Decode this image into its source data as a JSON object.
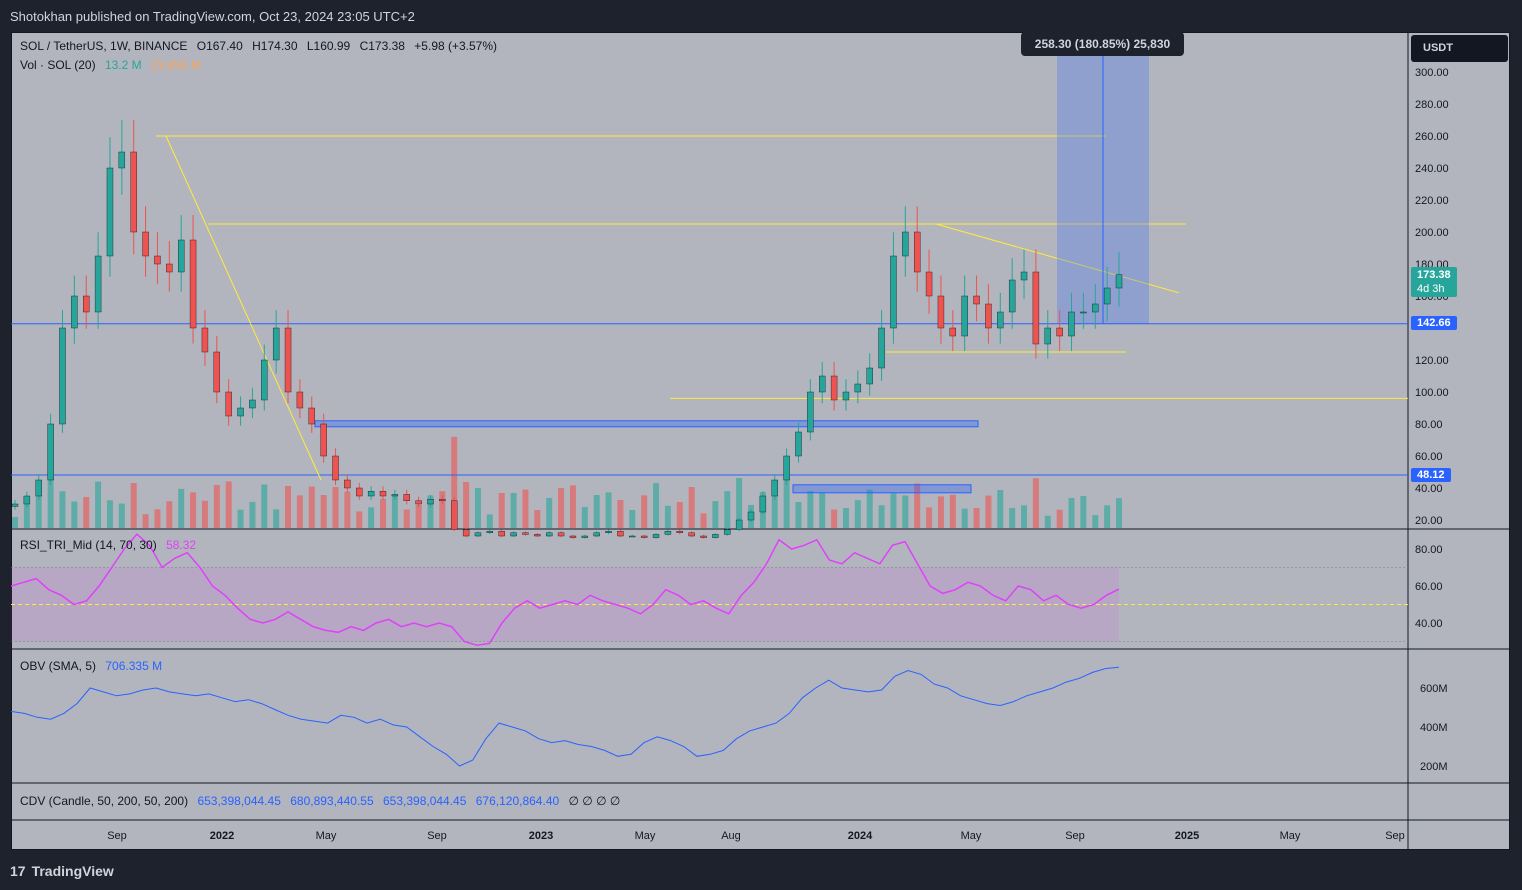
{
  "header": {
    "published": "Shotokhan published on TradingView.com, Oct 23, 2024 23:05 UTC+2"
  },
  "footer": {
    "brand": "TradingView",
    "logo": "17"
  },
  "main_legend": {
    "symbol": "SOL / TetherUS, 1W, BINANCE",
    "open": "O167.40",
    "high": "H174.30",
    "low": "L160.99",
    "close": "C173.38",
    "change": "+5.98 (+3.57%)"
  },
  "vol_legend": {
    "label": "Vol · SOL (20)",
    "vol": "13.2 M",
    "vol_ma": "23.856 M"
  },
  "rsi_legend": {
    "label": "RSI_TRI_Mid (14, 70, 30)",
    "value": "58.32"
  },
  "obv_legend": {
    "label": "OBV (SMA, 5)",
    "value": "706.335 M"
  },
  "cdv_legend": {
    "label": "CDV (Candle, 50, 200, 50, 200)",
    "v1": "653,398,044.45",
    "v2": "680,893,440.55",
    "v3": "653,398,044.45",
    "v4": "676,120,864.40",
    "rest": "∅ ∅ ∅ ∅"
  },
  "currency": "USDT",
  "measure_label": "258.30 (180.85%) 25,830",
  "price_tags": {
    "last": "173.38",
    "countdown": "4d 3h",
    "level1": "142.66",
    "level2": "48.12"
  },
  "colors": {
    "bg": "#b2b5be",
    "up": "#26a69a",
    "down": "#ef5350",
    "level": "#2962ff",
    "trend": "#ffeb3b",
    "rsi": "#e040fb",
    "obv": "#2962ff"
  },
  "chart_data": [
    {
      "type": "candlestick",
      "title": "SOL / TetherUS, 1W, BINANCE",
      "y_axis_ticks": [
        "300.00",
        "280.00",
        "260.00",
        "240.00",
        "220.00",
        "200.00",
        "180.00",
        "160.00",
        "142.66",
        "120.00",
        "100.00",
        "80.00",
        "60.00",
        "48.12",
        "40.00",
        "20.00"
      ],
      "x_axis_ticks": [
        "Sep",
        "2022",
        "May",
        "Sep",
        "2023",
        "May",
        "Aug",
        "2024",
        "May",
        "Sep",
        "2025",
        "May",
        "Sep"
      ],
      "approx_closes": [
        30,
        35,
        45,
        80,
        140,
        160,
        150,
        185,
        240,
        250,
        200,
        185,
        180,
        175,
        195,
        140,
        125,
        100,
        85,
        90,
        95,
        120,
        140,
        100,
        90,
        80,
        60,
        45,
        40,
        35,
        38,
        35,
        36,
        32,
        30,
        33,
        32,
        14,
        10,
        12,
        13,
        10,
        12,
        11,
        10,
        12,
        10,
        9,
        10,
        12,
        13,
        10,
        10,
        9,
        11,
        13,
        12,
        10,
        9,
        11,
        14,
        20,
        25,
        35,
        45,
        60,
        75,
        100,
        110,
        95,
        100,
        105,
        115,
        140,
        185,
        200,
        175,
        160,
        140,
        135,
        160,
        155,
        140,
        150,
        170,
        175,
        130,
        140,
        135,
        150,
        150,
        155,
        165,
        173.38
      ],
      "last_close": 173.38,
      "levels": [
        142.66,
        48.12
      ],
      "resistance_levels": [
        260,
        205,
        125,
        96
      ]
    },
    {
      "type": "bar",
      "title": "Vol · SOL (20)",
      "last_value": "13.2 M",
      "ma_value": "23.856 M"
    },
    {
      "type": "line",
      "title": "RSI_TRI_Mid (14, 70, 30)",
      "y_axis_ticks": [
        "80.00",
        "60.00",
        "40.00"
      ],
      "bands": [
        30,
        50,
        70
      ],
      "approx_values": [
        60,
        62,
        64,
        58,
        55,
        50,
        52,
        60,
        70,
        80,
        88,
        82,
        70,
        75,
        78,
        70,
        60,
        55,
        48,
        42,
        40,
        42,
        46,
        42,
        38,
        36,
        35,
        38,
        36,
        40,
        42,
        38,
        40,
        38,
        40,
        38,
        30,
        28,
        29,
        40,
        48,
        52,
        48,
        50,
        52,
        50,
        55,
        52,
        50,
        48,
        45,
        50,
        58,
        55,
        50,
        52,
        48,
        45,
        55,
        62,
        72,
        85,
        80,
        82,
        85,
        74,
        72,
        78,
        75,
        72,
        82,
        84,
        72,
        60,
        56,
        58,
        62,
        60,
        55,
        52,
        60,
        58,
        52,
        55,
        50,
        48,
        50,
        55,
        58.32
      ],
      "last_value": 58.32
    },
    {
      "type": "line",
      "title": "OBV (SMA, 5)",
      "y_axis_ticks": [
        "600M",
        "400M",
        "200M"
      ],
      "approx_values_millions": [
        480,
        470,
        450,
        440,
        470,
        520,
        600,
        580,
        560,
        570,
        590,
        600,
        580,
        570,
        560,
        570,
        550,
        530,
        540,
        520,
        490,
        460,
        440,
        430,
        420,
        460,
        450,
        420,
        440,
        410,
        400,
        350,
        300,
        260,
        200,
        230,
        340,
        420,
        400,
        380,
        340,
        320,
        330,
        310,
        300,
        280,
        250,
        260,
        320,
        350,
        330,
        300,
        250,
        260,
        280,
        340,
        380,
        400,
        420,
        470,
        550,
        600,
        640,
        600,
        590,
        580,
        590,
        660,
        690,
        670,
        620,
        600,
        560,
        540,
        520,
        510,
        530,
        560,
        580,
        600,
        630,
        650,
        680,
        700,
        706.335
      ],
      "last_value_millions": 706.335
    },
    {
      "type": "line",
      "title": "CDV (Candle, 50, 200, 50, 200)",
      "values": [
        "653,398,044.45",
        "680,893,440.55",
        "653,398,044.45",
        "676,120,864.40"
      ]
    }
  ]
}
